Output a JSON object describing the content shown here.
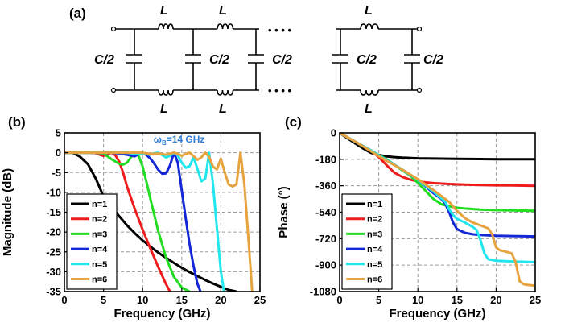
{
  "panel_a": {
    "label": "(a)",
    "inductor_label": "L",
    "capacitor_label": "C/2",
    "ellipsis": "• • • •"
  },
  "chart_data": [
    {
      "panel": "(b)",
      "type": "line",
      "title": "",
      "xlabel": "Frequency (GHz)",
      "ylabel": "Magnitude (dB)",
      "xlim": [
        0,
        25
      ],
      "ylim": [
        -35,
        5
      ],
      "xticks": [
        0,
        5,
        10,
        15,
        20,
        25
      ],
      "yticks": [
        5,
        0,
        -5,
        -10,
        -15,
        -20,
        -25,
        -30,
        -35
      ],
      "grid": true,
      "legend_position": "bottom-left",
      "annotation": {
        "text": "ω",
        "sub": "B",
        "rest": "=14 GHz",
        "color": "#2e7dd7",
        "at": [
          11.4,
          2.6
        ]
      },
      "series": [
        {
          "name": "n=1",
          "color": "#000000",
          "x": [
            0,
            1,
            2,
            3,
            4,
            5,
            6,
            7,
            8,
            9,
            10,
            11,
            12,
            13,
            14,
            15,
            16,
            17,
            18,
            19,
            20,
            21,
            22
          ],
          "y": [
            0,
            0,
            -1,
            -2.9,
            -6.5,
            -11,
            -13.5,
            -16,
            -18.3,
            -20.3,
            -22.1,
            -23.7,
            -25.2,
            -26.5,
            -27.8,
            -29,
            -30.1,
            -31.1,
            -32.1,
            -33,
            -33.8,
            -34.6,
            -35
          ]
        },
        {
          "name": "n=2",
          "color": "#ee1c1c",
          "x": [
            0,
            3,
            4,
            4.5,
            5,
            5.5,
            6,
            6.5,
            7,
            7.5,
            8,
            9,
            10,
            11,
            12,
            13,
            13.5
          ],
          "y": [
            0,
            0,
            -0.1,
            -0.5,
            -0.8,
            -0.4,
            0,
            -0.6,
            -2.2,
            -5,
            -8.5,
            -14.2,
            -19.4,
            -24.2,
            -28.8,
            -33.2,
            -35
          ]
        },
        {
          "name": "n=3",
          "color": "#22dd22",
          "x": [
            0,
            4,
            5,
            6,
            7,
            7.5,
            8,
            8.5,
            9,
            9.5,
            10,
            10.5,
            11,
            12,
            13,
            14,
            15,
            16
          ],
          "y": [
            0,
            0,
            -0.2,
            -1.6,
            -2.8,
            -3,
            -2.5,
            -1.2,
            0,
            -0.8,
            -3.5,
            -7.5,
            -11.7,
            -19.8,
            -26.5,
            -31.3,
            -34,
            -35
          ]
        },
        {
          "name": "n=4",
          "color": "#1427d6",
          "x": [
            0,
            6,
            7,
            8,
            9,
            9.5,
            10,
            10.5,
            11,
            11.5,
            12,
            12.5,
            13,
            13.5,
            14,
            14.5,
            15,
            15.5,
            16,
            16.5,
            17,
            17.4
          ],
          "y": [
            0,
            0,
            -0.2,
            -0.5,
            -0.9,
            -0.4,
            0,
            -0.6,
            -1.5,
            -2.8,
            -4.3,
            -5.3,
            -5.2,
            -3.2,
            0,
            -2.5,
            -9.5,
            -16.5,
            -23,
            -28.5,
            -33,
            -35
          ]
        },
        {
          "name": "n=5",
          "color": "#22e6ee",
          "x": [
            0,
            8,
            9,
            10,
            11,
            11.5,
            12,
            12.5,
            13,
            13.5,
            14,
            14.5,
            15,
            15.5,
            16,
            16.5,
            17,
            17.5,
            18,
            18.5,
            19,
            19.5,
            20,
            20.4
          ],
          "y": [
            0,
            0,
            -0.3,
            -0.2,
            -0.5,
            -0.1,
            0,
            -0.6,
            -1.2,
            -0.8,
            0,
            -0.7,
            -2.5,
            -3.8,
            -3.4,
            -1.2,
            -4,
            -7.2,
            -6.6,
            0,
            -8,
            -19,
            -30,
            -35
          ]
        },
        {
          "name": "n=6",
          "color": "#e6a33e",
          "x": [
            0,
            10,
            11,
            12,
            13,
            14,
            14.5,
            15,
            15.5,
            16,
            16.5,
            17,
            17.5,
            18,
            18.5,
            19,
            19.5,
            20,
            20.5,
            21,
            21.5,
            22,
            22.5,
            23,
            23.5,
            24
          ],
          "y": [
            0,
            0,
            -0.3,
            -0.2,
            -0.5,
            0,
            -0.3,
            -0.8,
            -0.3,
            0,
            -0.8,
            -1.8,
            -1.2,
            0,
            -1,
            -3.5,
            -4.2,
            -1.5,
            -5,
            -8,
            -8.5,
            -8,
            0,
            -8,
            -21,
            -35
          ]
        }
      ]
    },
    {
      "panel": "(c)",
      "type": "line",
      "title": "",
      "xlabel": "Frequency (GHz)",
      "ylabel": "Phase (°)",
      "xlim": [
        0,
        25
      ],
      "ylim": [
        -1080,
        0
      ],
      "xticks": [
        0,
        5,
        10,
        15,
        20,
        25
      ],
      "yticks": [
        0,
        -180,
        -360,
        -540,
        -720,
        -900,
        -1080
      ],
      "grid": true,
      "legend_position": "bottom-left",
      "series": [
        {
          "name": "n=1",
          "color": "#000000",
          "x": [
            0,
            1,
            2,
            3,
            4,
            5,
            6,
            7,
            8,
            10,
            12,
            15,
            18,
            20,
            22,
            25
          ],
          "y": [
            0,
            -36,
            -72,
            -106,
            -136,
            -150,
            -160,
            -165,
            -169,
            -173,
            -175,
            -177,
            -178,
            -179,
            -179,
            -180
          ]
        },
        {
          "name": "n=2",
          "color": "#ee1c1c",
          "x": [
            0,
            2,
            4,
            5,
            6,
            7,
            8,
            9,
            10,
            11,
            12,
            14,
            16,
            18,
            20,
            22,
            25
          ],
          "y": [
            0,
            -60,
            -120,
            -165,
            -220,
            -270,
            -300,
            -318,
            -330,
            -337,
            -342,
            -348,
            -352,
            -355,
            -357,
            -358,
            -360
          ]
        },
        {
          "name": "n=3",
          "color": "#22dd22",
          "x": [
            0,
            2,
            4,
            6,
            8,
            9,
            10,
            11,
            12,
            13,
            14,
            15,
            16,
            18,
            20,
            22,
            25
          ],
          "y": [
            0,
            -60,
            -120,
            -180,
            -255,
            -290,
            -340,
            -395,
            -450,
            -485,
            -500,
            -510,
            -515,
            -522,
            -526,
            -528,
            -530
          ]
        },
        {
          "name": "n=4",
          "color": "#1427d6",
          "x": [
            0,
            2,
            4,
            6,
            8,
            10,
            11,
            12,
            13,
            13.5,
            14,
            14.5,
            15,
            16,
            17,
            18,
            20,
            22,
            25
          ],
          "y": [
            0,
            -60,
            -120,
            -185,
            -250,
            -320,
            -365,
            -410,
            -450,
            -480,
            -540,
            -610,
            -655,
            -680,
            -690,
            -695,
            -700,
            -702,
            -705
          ]
        },
        {
          "name": "n=5",
          "color": "#22e6ee",
          "x": [
            0,
            2,
            4,
            6,
            8,
            10,
            12,
            13,
            13.5,
            14,
            14.5,
            15,
            16,
            17,
            17.5,
            18,
            18.5,
            19,
            20,
            22,
            25
          ],
          "y": [
            0,
            -60,
            -120,
            -185,
            -250,
            -320,
            -400,
            -445,
            -470,
            -520,
            -560,
            -585,
            -610,
            -640,
            -660,
            -730,
            -820,
            -860,
            -870,
            -875,
            -880
          ]
        },
        {
          "name": "n=6",
          "color": "#e6a33e",
          "x": [
            0,
            2,
            4,
            6,
            8,
            10,
            12,
            14,
            15,
            16,
            17,
            18,
            19,
            19.5,
            20,
            20.5,
            21,
            22,
            22.5,
            23,
            23.5,
            24,
            25
          ],
          "y": [
            0,
            -60,
            -125,
            -190,
            -250,
            -315,
            -390,
            -470,
            -530,
            -580,
            -610,
            -630,
            -650,
            -690,
            -780,
            -800,
            -805,
            -820,
            -880,
            -1010,
            -1030,
            -1035,
            -1040
          ]
        }
      ]
    }
  ]
}
